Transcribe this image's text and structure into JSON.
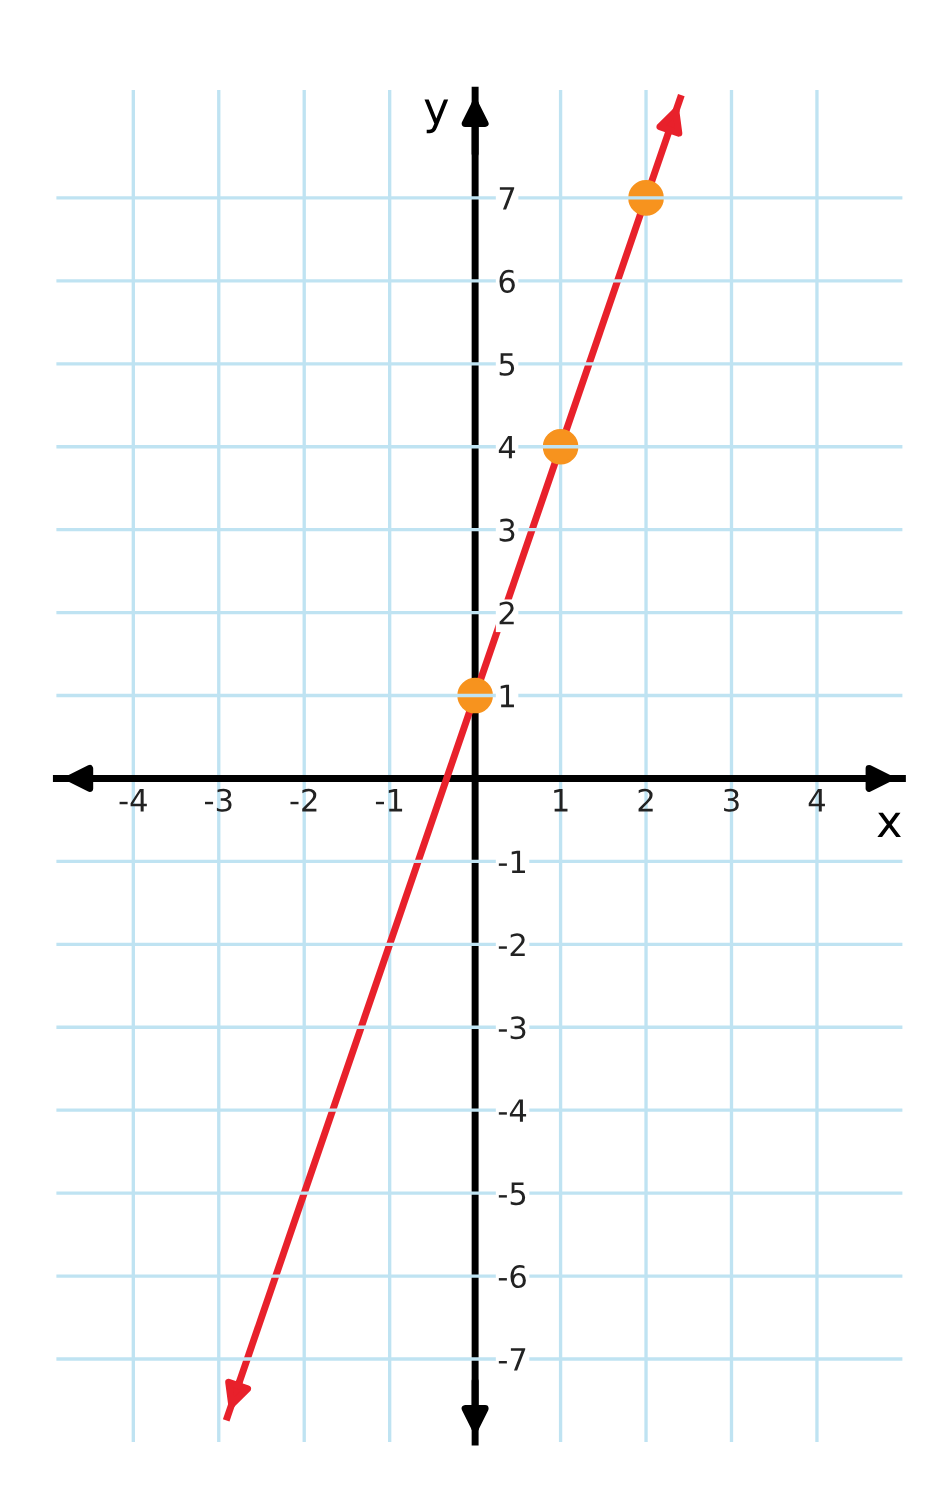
{
  "chart_data": {
    "type": "line",
    "xlabel": "x",
    "ylabel": "y",
    "series": [
      {
        "color": "#e8212b",
        "x": [
          -2.9,
          2.4
        ],
        "values": [
          -7.7,
          8.2
        ],
        "marker": "none"
      },
      {
        "type": "scatter",
        "color": "#f7931e",
        "x": [
          0,
          1,
          2
        ],
        "values": [
          1,
          4,
          7
        ],
        "marker": "circle"
      }
    ],
    "xlim": [
      -4.9,
      5.0
    ],
    "ylim": [
      -8.0,
      8.3
    ],
    "xticks": [
      -4,
      -3,
      -2,
      -1,
      1,
      2,
      3,
      4
    ],
    "yticks": [
      -7,
      -6,
      -5,
      -4,
      -3,
      -2,
      -1,
      1,
      2,
      3,
      4,
      5,
      6,
      7
    ],
    "grid": true
  }
}
